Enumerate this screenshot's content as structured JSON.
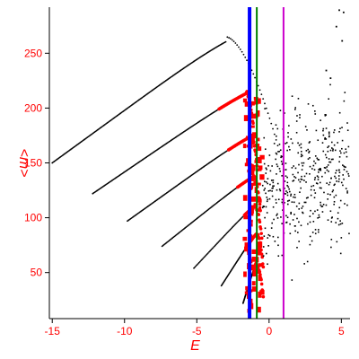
{
  "chart_data": {
    "type": "scatter",
    "title": "",
    "xlabel": "E",
    "ylabel": "<m>",
    "xlim": [
      -15.2,
      5.6
    ],
    "ylim": [
      8,
      292
    ],
    "grid": false,
    "legend": "none",
    "xticks": [
      -15,
      -10,
      -5,
      0,
      5
    ],
    "xtick_labels": [
      "-15",
      "-10",
      "-5",
      "0",
      "5"
    ],
    "yticks": [
      50,
      100,
      150,
      200,
      250
    ],
    "ytick_labels": [
      "50",
      "100",
      "150",
      "200",
      "250"
    ],
    "colors": {
      "axes": "#000000",
      "tick_labels": "#ff0000",
      "ordered_points": "#000000",
      "edge_points": "#ff0000",
      "vline_blue": "#0000ff",
      "vline_green": "#008000",
      "vline_magenta": "#cc00cc"
    },
    "vertical_lines": [
      {
        "x": -1.35,
        "color": "#0000ff",
        "width": 4
      },
      {
        "x": -0.85,
        "color": "#008000",
        "width": 2
      },
      {
        "x": 1.0,
        "color": "#cc00cc",
        "width": 2
      }
    ],
    "curves": [
      {
        "x_start": -15.0,
        "y_start": 150,
        "x_peak": -3.0,
        "y_peak": 265,
        "x_end": 1.5,
        "y_end": 120
      },
      {
        "x_start": -12.2,
        "y_start": 122,
        "x_peak": -1.6,
        "y_peak": 217
      },
      {
        "x_start": -9.8,
        "y_start": 97,
        "x_peak": -1.3,
        "y_peak": 177
      },
      {
        "x_start": -7.4,
        "y_start": 74,
        "x_peak": -1.1,
        "y_peak": 140
      },
      {
        "x_start": -5.2,
        "y_start": 54,
        "x_peak": -1.0,
        "y_peak": 113
      },
      {
        "x_start": -3.3,
        "y_start": 38,
        "x_peak": -0.9,
        "y_peak": 87
      },
      {
        "x_start": -1.8,
        "y_start": 22,
        "x_peak": -0.9,
        "y_peak": 60
      }
    ],
    "scatter_cloud": {
      "x_range": [
        -0.5,
        5.5
      ],
      "y_center": 130,
      "y_spread": 60,
      "n_points": 420,
      "top_outliers": [
        [
          4.8,
          290
        ],
        [
          5.1,
          288
        ],
        [
          4.6,
          275
        ],
        [
          5.0,
          262
        ],
        [
          3.9,
          235
        ],
        [
          4.2,
          228
        ]
      ]
    }
  }
}
